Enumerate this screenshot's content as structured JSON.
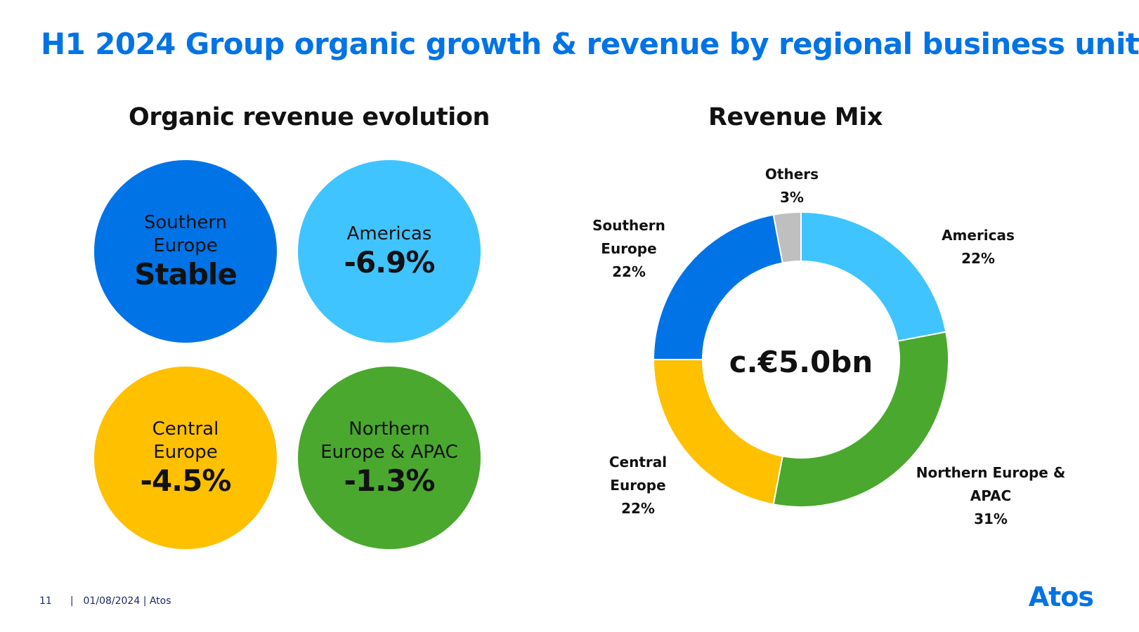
{
  "title": "H1 2024 Group organic growth & revenue by regional business unit",
  "left_section": {
    "title": "Organic revenue evolution",
    "units": [
      {
        "label": "Southern\nEurope",
        "value": "Stable",
        "color": "#0073e6"
      },
      {
        "label": "Americas",
        "value": "-6.9%",
        "color": "#40c4ff"
      },
      {
        "label": "Central\nEurope",
        "value": "-4.5%",
        "color": "#ffc000"
      },
      {
        "label": "Northern\nEurope & APAC",
        "value": "-1.3%",
        "color": "#4aa82e"
      }
    ]
  },
  "right_section": {
    "title": "Revenue Mix"
  },
  "chart_data": {
    "type": "pie",
    "title": "Revenue Mix",
    "center_label": "c.€5.0bn",
    "slices": [
      {
        "label_lines": [
          "Americas",
          "22%"
        ],
        "value": 22,
        "color": "#40c4ff"
      },
      {
        "label_lines": [
          "Northern Europe &",
          "APAC",
          "31%"
        ],
        "value": 31,
        "color": "#4aa82e"
      },
      {
        "label_lines": [
          "Central",
          "Europe",
          "22%"
        ],
        "value": 22,
        "color": "#ffc000"
      },
      {
        "label_lines": [
          "Southern",
          "Europe",
          "22%"
        ],
        "value": 22,
        "color": "#0073e6"
      },
      {
        "label_lines": [
          "Others",
          "3%"
        ],
        "value": 3,
        "color": "#bfbfbf"
      }
    ]
  },
  "footer": {
    "page_number": "11",
    "separator": "|",
    "date_company": "01/08/2024 | Atos"
  },
  "logo": {
    "text": "Atos"
  }
}
